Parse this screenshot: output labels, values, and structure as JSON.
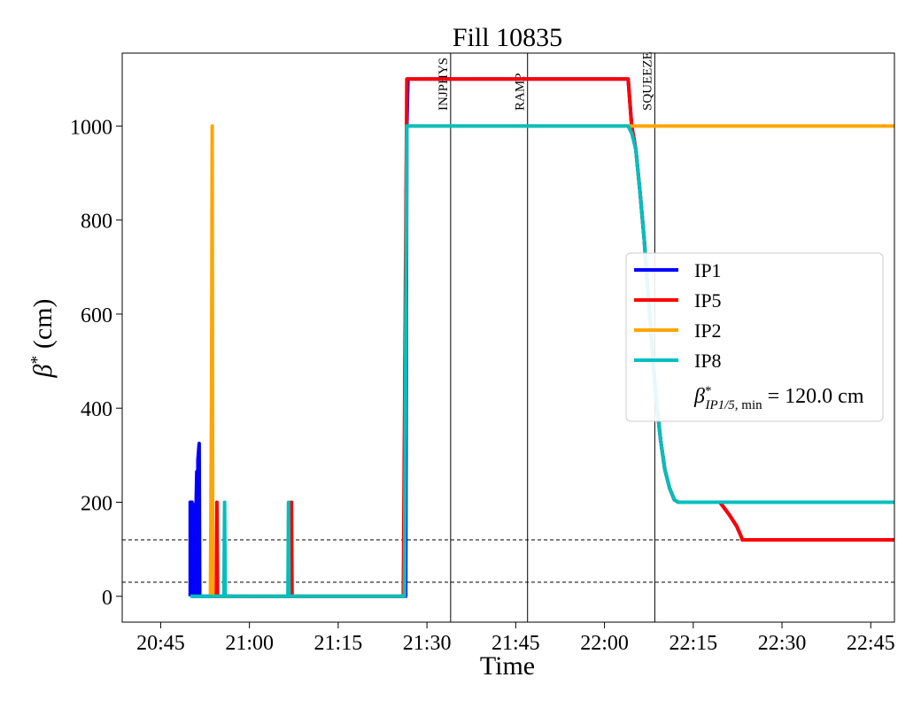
{
  "chart_data": {
    "type": "line",
    "title": "Fill 10835",
    "xlabel": "Time",
    "ylabel": "β* (cm)",
    "x_unit": "minutes after 20:45",
    "xlim": [
      -6.5,
      124
    ],
    "ylim": [
      -55,
      1155
    ],
    "x_ticks": [
      {
        "v": 0,
        "label": "20:45"
      },
      {
        "v": 15,
        "label": "21:00"
      },
      {
        "v": 30,
        "label": "21:15"
      },
      {
        "v": 45,
        "label": "21:30"
      },
      {
        "v": 60,
        "label": "21:45"
      },
      {
        "v": 75,
        "label": "22:00"
      },
      {
        "v": 90,
        "label": "22:15"
      },
      {
        "v": 105,
        "label": "22:30"
      },
      {
        "v": 120,
        "label": "22:45"
      }
    ],
    "y_ticks": [
      0,
      200,
      400,
      600,
      800,
      1000
    ],
    "grid": false,
    "legend_position": "center-right",
    "legend_extra_label": "β*IP1/5, min = 120.0 cm",
    "series": [
      {
        "name": "IP1",
        "color": "#0000ff",
        "points": [
          [
            5.0,
            0
          ],
          [
            5.0,
            200
          ],
          [
            5.3,
            200
          ],
          [
            5.4,
            0
          ],
          [
            5.6,
            195
          ],
          [
            5.8,
            0
          ],
          [
            6.0,
            200
          ],
          [
            6.1,
            265
          ],
          [
            6.2,
            0
          ],
          [
            6.3,
            290
          ],
          [
            6.5,
            325
          ],
          [
            6.6,
            0
          ],
          [
            8.5,
            0
          ],
          [
            9.2,
            0
          ],
          [
            10.7,
            0
          ],
          [
            11.6,
            0
          ],
          [
            20.9,
            0
          ],
          [
            21.3,
            0
          ],
          [
            21.6,
            0
          ],
          [
            30.5,
            0
          ],
          [
            30.9,
            0
          ],
          [
            31.5,
            0
          ],
          [
            39.5,
            0
          ],
          [
            40.5,
            0
          ],
          [
            41.0,
            0
          ],
          [
            41.2,
            0
          ],
          [
            41.4,
            0
          ],
          [
            41.6,
            1000
          ],
          [
            41.8,
            1100
          ],
          [
            79.0,
            1100
          ],
          [
            79.0,
            1100
          ],
          [
            79.6,
            1000
          ],
          [
            80.3,
            950
          ],
          [
            81.0,
            860
          ],
          [
            81.7,
            760
          ],
          [
            82.4,
            640
          ],
          [
            83.1,
            520
          ],
          [
            83.8,
            410
          ],
          [
            84.5,
            330
          ],
          [
            85.2,
            270
          ],
          [
            86.0,
            230
          ],
          [
            86.8,
            205
          ],
          [
            87.5,
            200
          ],
          [
            94.5,
            200
          ],
          [
            96.0,
            175
          ],
          [
            97.3,
            150
          ],
          [
            98.0,
            130
          ],
          [
            98.3,
            120
          ],
          [
            124.0,
            120
          ]
        ]
      },
      {
        "name": "IP5",
        "color": "#ff0000",
        "points": [
          [
            9.4,
            0
          ],
          [
            9.5,
            200
          ],
          [
            9.6,
            0
          ],
          [
            22.0,
            0
          ],
          [
            22.1,
            200
          ],
          [
            22.2,
            0
          ],
          [
            41.0,
            0
          ],
          [
            41.6,
            1100
          ],
          [
            79.0,
            1100
          ],
          [
            79.6,
            1000
          ],
          [
            80.3,
            950
          ],
          [
            81.0,
            860
          ],
          [
            81.7,
            760
          ],
          [
            82.4,
            640
          ],
          [
            83.1,
            520
          ],
          [
            83.8,
            410
          ],
          [
            84.5,
            330
          ],
          [
            85.2,
            270
          ],
          [
            86.0,
            230
          ],
          [
            86.8,
            205
          ],
          [
            87.5,
            200
          ],
          [
            94.5,
            200
          ],
          [
            96.0,
            175
          ],
          [
            97.3,
            150
          ],
          [
            98.0,
            130
          ],
          [
            98.3,
            120
          ],
          [
            124.0,
            120
          ]
        ]
      },
      {
        "name": "IP2",
        "color": "#ffa500",
        "points": [
          [
            8.4,
            0
          ],
          [
            8.6,
            420
          ],
          [
            8.7,
            1000
          ],
          [
            8.8,
            0
          ],
          [
            9.1,
            0
          ],
          [
            41.2,
            0
          ],
          [
            41.6,
            1000
          ],
          [
            79.0,
            1000
          ],
          [
            124.0,
            1000
          ]
        ]
      },
      {
        "name": "IP8",
        "color": "#00bfbf",
        "points": [
          [
            5.0,
            0
          ],
          [
            10.7,
            0
          ],
          [
            10.8,
            200
          ],
          [
            10.9,
            0
          ],
          [
            21.5,
            0
          ],
          [
            21.6,
            200
          ],
          [
            21.7,
            0
          ],
          [
            41.2,
            0
          ],
          [
            41.6,
            1000
          ],
          [
            79.0,
            1000
          ],
          [
            79.6,
            985
          ],
          [
            80.3,
            950
          ],
          [
            81.0,
            860
          ],
          [
            81.7,
            760
          ],
          [
            82.4,
            640
          ],
          [
            83.1,
            520
          ],
          [
            83.8,
            410
          ],
          [
            84.5,
            330
          ],
          [
            85.2,
            270
          ],
          [
            86.0,
            230
          ],
          [
            86.8,
            205
          ],
          [
            87.5,
            200
          ],
          [
            124.0,
            200
          ]
        ]
      }
    ],
    "hlines": [
      120,
      30
    ],
    "vlines": [
      {
        "x": 49.0,
        "label": "INJPHYS"
      },
      {
        "x": 62.0,
        "label": "RAMP"
      },
      {
        "x": 83.5,
        "label": "SQUEEZE"
      }
    ]
  }
}
